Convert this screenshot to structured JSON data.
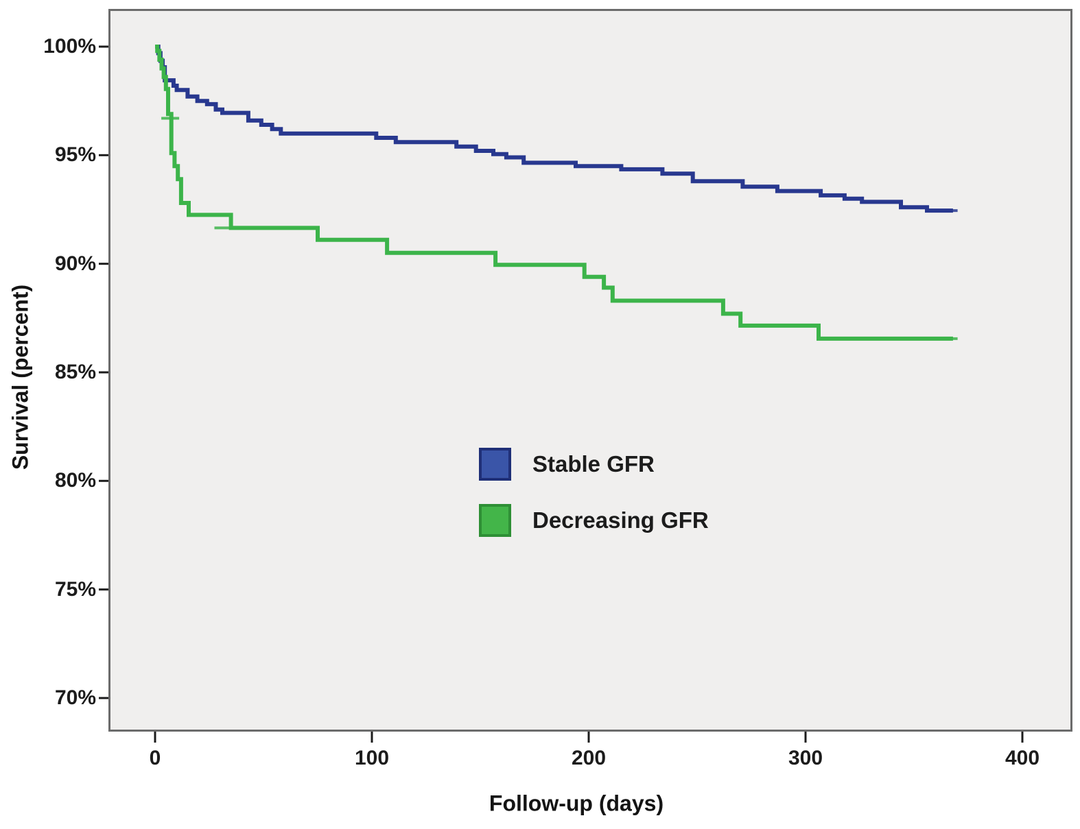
{
  "chart_data": {
    "type": "line",
    "subtype": "kaplan-meier-step-survival",
    "title": "",
    "xlabel": "Follow-up (days)",
    "ylabel": "Survival (percent)",
    "xlim": [
      -21,
      423
    ],
    "ylim": [
      68.5,
      101.7
    ],
    "grid": false,
    "legend_position": "center-of-plot",
    "plot_background": "#f0efee",
    "frame_color": "#6b6b6b",
    "tick_color": "#1c1c1c",
    "x_ticks": [
      {
        "label": "0",
        "value": 0
      },
      {
        "label": "100",
        "value": 100
      },
      {
        "label": "200",
        "value": 200
      },
      {
        "label": "300",
        "value": 300
      },
      {
        "label": "400",
        "value": 400
      }
    ],
    "y_ticks": [
      {
        "label": "100%",
        "value": 100
      },
      {
        "label": "95%",
        "value": 95
      },
      {
        "label": "90%",
        "value": 90
      },
      {
        "label": "85%",
        "value": 85
      },
      {
        "label": "80%",
        "value": 80
      },
      {
        "label": "75%",
        "value": 75
      },
      {
        "label": "70%",
        "value": 70
      }
    ],
    "series": [
      {
        "name": "Stable GFR",
        "color": "#28388f",
        "legend_fill": "#3a55a8",
        "legend_border": "#1f2f77",
        "end_day": 368,
        "steps": [
          [
            0,
            100
          ],
          [
            1.5,
            99.7
          ],
          [
            2.5,
            99.35
          ],
          [
            3.5,
            99.05
          ],
          [
            4.5,
            98.45
          ],
          [
            8.5,
            98.2
          ],
          [
            10,
            98
          ],
          [
            15,
            97.7
          ],
          [
            19.5,
            97.5
          ],
          [
            24,
            97.35
          ],
          [
            28,
            97.1
          ],
          [
            31,
            96.95
          ],
          [
            43,
            96.6
          ],
          [
            49,
            96.4
          ],
          [
            54,
            96.2
          ],
          [
            58,
            96
          ],
          [
            102,
            95.8
          ],
          [
            111,
            95.6
          ],
          [
            139,
            95.4
          ],
          [
            148,
            95.2
          ],
          [
            156,
            95.05
          ],
          [
            162,
            94.9
          ],
          [
            170,
            94.65
          ],
          [
            194,
            94.5
          ],
          [
            215,
            94.35
          ],
          [
            234,
            94.15
          ],
          [
            248,
            93.8
          ],
          [
            271,
            93.55
          ],
          [
            287,
            93.35
          ],
          [
            307,
            93.15
          ],
          [
            318,
            93
          ],
          [
            326,
            92.85
          ],
          [
            344,
            92.6
          ],
          [
            356,
            92.45
          ]
        ]
      },
      {
        "name": "Decreasing GFR",
        "color": "#3cb44a",
        "legend_fill": "#43b549",
        "legend_border": "#2e8f35",
        "end_day": 368,
        "steps": [
          [
            0,
            100
          ],
          [
            1,
            99.8
          ],
          [
            2,
            99.4
          ],
          [
            3,
            99
          ],
          [
            4,
            98.6
          ],
          [
            5,
            98.05
          ],
          [
            6,
            96.9
          ],
          [
            7.5,
            95.1
          ],
          [
            9,
            94.5
          ],
          [
            10.5,
            93.9
          ],
          [
            12,
            92.8
          ],
          [
            15.5,
            92.25
          ],
          [
            35,
            91.65
          ],
          [
            75,
            91.1
          ],
          [
            107,
            90.5
          ],
          [
            157,
            89.95
          ],
          [
            198,
            89.4
          ],
          [
            207,
            88.9
          ],
          [
            211,
            88.3
          ],
          [
            262,
            87.7
          ],
          [
            270,
            87.15
          ],
          [
            306,
            86.55
          ]
        ]
      }
    ],
    "censor_marks": [
      {
        "series": 0,
        "day": 366,
        "survival": 92.45
      },
      {
        "series": 1,
        "day": 7,
        "survival": 96.7
      },
      {
        "series": 1,
        "day": 31.5,
        "survival": 91.65
      },
      {
        "series": 1,
        "day": 366,
        "survival": 86.55
      }
    ]
  }
}
